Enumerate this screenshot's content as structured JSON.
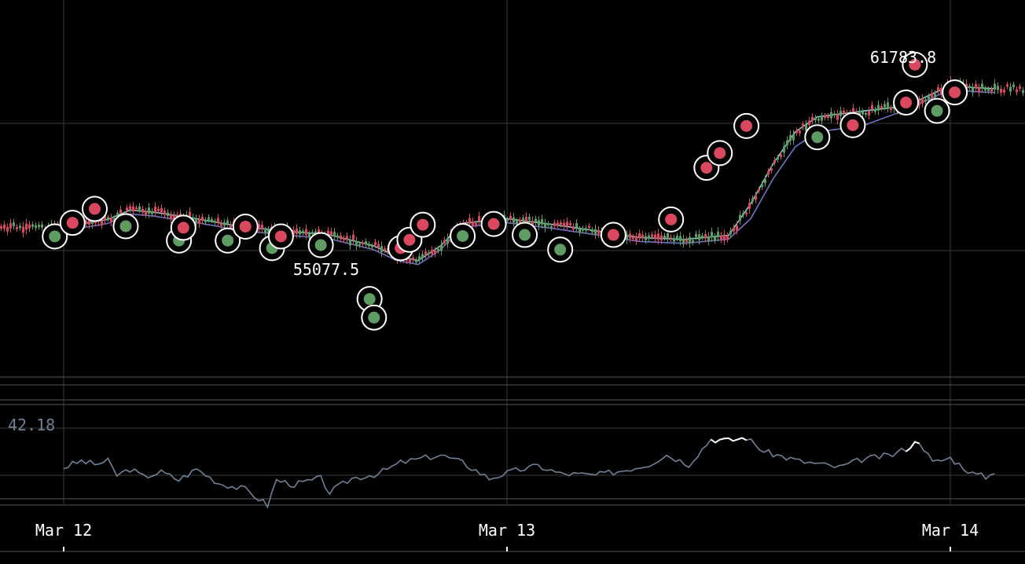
{
  "chart_data": {
    "type": "line",
    "title": "",
    "xlabel": "",
    "ylabel": "",
    "x_ticks": [
      "Mar 12",
      "Mar 13",
      "Mar 14"
    ],
    "price": {
      "ylim": [
        53500,
        63500
      ],
      "high_label": "61783.8",
      "low_label": "55077.5",
      "ma_fast_color": "#7fd3cf",
      "ma_slow_color": "#6d73c4",
      "up_color": "#5f9c63",
      "down_color": "#d9485e",
      "series": [
        {
          "x": 0,
          "y": 57480
        },
        {
          "x": 0.1,
          "y": 57680
        },
        {
          "x": 0.15,
          "y": 57930
        },
        {
          "x": 0.2,
          "y": 57880
        },
        {
          "x": 0.3,
          "y": 57700
        },
        {
          "x": 0.4,
          "y": 57490
        },
        {
          "x": 0.5,
          "y": 57370
        },
        {
          "x": 0.6,
          "y": 57270
        },
        {
          "x": 0.7,
          "y": 56980
        },
        {
          "x": 0.75,
          "y": 56700
        },
        {
          "x": 0.8,
          "y": 56590
        },
        {
          "x": 0.85,
          "y": 56980
        },
        {
          "x": 0.9,
          "y": 57580
        },
        {
          "x": 1.0,
          "y": 57700
        },
        {
          "x": 1.1,
          "y": 57550
        },
        {
          "x": 1.2,
          "y": 57380
        },
        {
          "x": 1.3,
          "y": 57200
        },
        {
          "x": 1.4,
          "y": 57150
        },
        {
          "x": 1.5,
          "y": 57260
        },
        {
          "x": 1.55,
          "y": 58100
        },
        {
          "x": 1.6,
          "y": 59150
        },
        {
          "x": 1.65,
          "y": 60000
        },
        {
          "x": 1.7,
          "y": 60400
        },
        {
          "x": 1.8,
          "y": 60550
        },
        {
          "x": 1.9,
          "y": 60690
        },
        {
          "x": 2.0,
          "y": 61230
        },
        {
          "x": 2.05,
          "y": 61180
        },
        {
          "x": 2.1,
          "y": 61150
        }
      ]
    },
    "markers": [
      {
        "x": -0.02,
        "y": 57230,
        "type": "buy"
      },
      {
        "x": 0.02,
        "y": 57590,
        "type": "sell"
      },
      {
        "x": 0.07,
        "y": 57960,
        "type": "sell"
      },
      {
        "x": 0.14,
        "y": 57500,
        "type": "buy"
      },
      {
        "x": 0.26,
        "y": 57120,
        "type": "buy"
      },
      {
        "x": 0.27,
        "y": 57460,
        "type": "sell"
      },
      {
        "x": 0.37,
        "y": 57120,
        "type": "buy"
      },
      {
        "x": 0.41,
        "y": 57490,
        "type": "sell"
      },
      {
        "x": 0.47,
        "y": 56920,
        "type": "buy"
      },
      {
        "x": 0.49,
        "y": 57230,
        "type": "sell"
      },
      {
        "x": 0.58,
        "y": 57000,
        "type": "buy"
      },
      {
        "x": 0.69,
        "y": 55570,
        "type": "buy"
      },
      {
        "x": 0.7,
        "y": 55077.5,
        "type": "buy"
      },
      {
        "x": 0.76,
        "y": 56920,
        "type": "sell"
      },
      {
        "x": 0.78,
        "y": 57140,
        "type": "sell"
      },
      {
        "x": 0.81,
        "y": 57540,
        "type": "sell"
      },
      {
        "x": 0.9,
        "y": 57240,
        "type": "buy"
      },
      {
        "x": 0.97,
        "y": 57560,
        "type": "sell"
      },
      {
        "x": 1.04,
        "y": 57270,
        "type": "buy"
      },
      {
        "x": 1.12,
        "y": 56880,
        "type": "buy"
      },
      {
        "x": 1.24,
        "y": 57270,
        "type": "sell"
      },
      {
        "x": 1.37,
        "y": 57680,
        "type": "sell"
      },
      {
        "x": 1.45,
        "y": 59050,
        "type": "sell"
      },
      {
        "x": 1.48,
        "y": 59440,
        "type": "sell"
      },
      {
        "x": 1.54,
        "y": 60160,
        "type": "sell"
      },
      {
        "x": 1.7,
        "y": 59860,
        "type": "buy"
      },
      {
        "x": 1.78,
        "y": 60180,
        "type": "sell"
      },
      {
        "x": 1.9,
        "y": 60780,
        "type": "sell"
      },
      {
        "x": 1.92,
        "y": 61783.8,
        "type": "sell"
      },
      {
        "x": 1.97,
        "y": 60560,
        "type": "buy"
      },
      {
        "x": 2.01,
        "y": 61050,
        "type": "sell"
      }
    ],
    "indicator": {
      "current_label": "42.18",
      "ylim": [
        20,
        80
      ],
      "color": "#6f8196",
      "highlight_color": "#ffffff",
      "series": [
        {
          "x": 0,
          "y": 40
        },
        {
          "x": 0.04,
          "y": 44
        },
        {
          "x": 0.07,
          "y": 42
        },
        {
          "x": 0.1,
          "y": 44
        },
        {
          "x": 0.12,
          "y": 35
        },
        {
          "x": 0.15,
          "y": 39
        },
        {
          "x": 0.18,
          "y": 34
        },
        {
          "x": 0.22,
          "y": 37
        },
        {
          "x": 0.26,
          "y": 32
        },
        {
          "x": 0.3,
          "y": 39
        },
        {
          "x": 0.35,
          "y": 30
        },
        {
          "x": 0.41,
          "y": 26
        },
        {
          "x": 0.46,
          "y": 16
        },
        {
          "x": 0.48,
          "y": 32
        },
        {
          "x": 0.52,
          "y": 29
        },
        {
          "x": 0.58,
          "y": 33
        },
        {
          "x": 0.6,
          "y": 24
        },
        {
          "x": 0.65,
          "y": 33
        },
        {
          "x": 0.71,
          "y": 36
        },
        {
          "x": 0.76,
          "y": 43
        },
        {
          "x": 0.85,
          "y": 48
        },
        {
          "x": 0.9,
          "y": 43
        },
        {
          "x": 0.96,
          "y": 33
        },
        {
          "x": 1.02,
          "y": 38
        },
        {
          "x": 1.07,
          "y": 41
        },
        {
          "x": 1.12,
          "y": 36
        },
        {
          "x": 1.2,
          "y": 35
        },
        {
          "x": 1.26,
          "y": 38
        },
        {
          "x": 1.32,
          "y": 42
        },
        {
          "x": 1.36,
          "y": 48
        },
        {
          "x": 1.41,
          "y": 42
        },
        {
          "x": 1.46,
          "y": 58,
          "hl": true
        },
        {
          "x": 1.5,
          "y": 57,
          "hl": true
        },
        {
          "x": 1.54,
          "y": 59,
          "hl": true
        },
        {
          "x": 1.58,
          "y": 50
        },
        {
          "x": 1.66,
          "y": 44
        },
        {
          "x": 1.75,
          "y": 40
        },
        {
          "x": 1.8,
          "y": 45
        },
        {
          "x": 1.87,
          "y": 48
        },
        {
          "x": 1.9,
          "y": 52,
          "hl": true
        },
        {
          "x": 1.93,
          "y": 57,
          "hl": true
        },
        {
          "x": 1.96,
          "y": 43
        },
        {
          "x": 2.0,
          "y": 46
        },
        {
          "x": 2.05,
          "y": 36
        },
        {
          "x": 2.08,
          "y": 34
        },
        {
          "x": 2.1,
          "y": 36
        }
      ]
    }
  }
}
